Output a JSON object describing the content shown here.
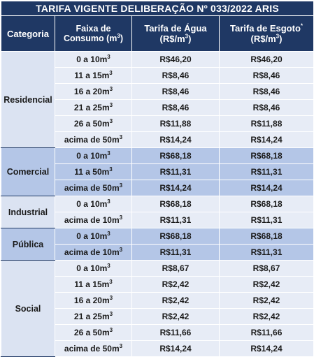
{
  "title": "TARIFA VIGENTE DELIBERAÇÃO Nº 033/2022 ARIS",
  "headers": {
    "categoria": "Categoria",
    "faixa": "Faixa de Consumo (m³)",
    "agua": "Tarifa de Água (R$/m³)",
    "esgoto": "Tarifa de Esgoto* (R$/m³)"
  },
  "groups": [
    {
      "categoria": "Residencial",
      "rows": [
        {
          "faixa": "0 a 10m³",
          "agua": "R$46,20",
          "esgoto": "R$46,20"
        },
        {
          "faixa": "11 a 15m³",
          "agua": "R$8,46",
          "esgoto": "R$8,46"
        },
        {
          "faixa": "16 a 20m³",
          "agua": "R$8,46",
          "esgoto": "R$8,46"
        },
        {
          "faixa": "21 a 25m³",
          "agua": "R$8,46",
          "esgoto": "R$8,46"
        },
        {
          "faixa": "26 a 50m³",
          "agua": "R$11,88",
          "esgoto": "R$11,88"
        },
        {
          "faixa": "acima de 50m³",
          "agua": "R$14,24",
          "esgoto": "R$14,24"
        }
      ]
    },
    {
      "categoria": "Comercial",
      "rows": [
        {
          "faixa": "0 a 10m³",
          "agua": "R$68,18",
          "esgoto": "R$68,18"
        },
        {
          "faixa": "11 a 50m³",
          "agua": "R$11,31",
          "esgoto": "R$11,31"
        },
        {
          "faixa": "acima de 50m³",
          "agua": "R$14,24",
          "esgoto": "R$14,24"
        }
      ]
    },
    {
      "categoria": "Industrial",
      "rows": [
        {
          "faixa": "0 a 10m³",
          "agua": "R$68,18",
          "esgoto": "R$68,18"
        },
        {
          "faixa": "acima de 10m³",
          "agua": "R$11,31",
          "esgoto": "R$11,31"
        }
      ]
    },
    {
      "categoria": "Pública",
      "rows": [
        {
          "faixa": "0 a 10m³",
          "agua": "R$68,18",
          "esgoto": "R$68,18"
        },
        {
          "faixa": "acima de 10m³",
          "agua": "R$11,31",
          "esgoto": "R$11,31"
        }
      ]
    },
    {
      "categoria": "Social",
      "rows": [
        {
          "faixa": "0 a 10m³",
          "agua": "R$8,67",
          "esgoto": "R$8,67"
        },
        {
          "faixa": "11 a 15m³",
          "agua": "R$2,42",
          "esgoto": "R$2,42"
        },
        {
          "faixa": "16 a 20m³",
          "agua": "R$2,42",
          "esgoto": "R$2,42"
        },
        {
          "faixa": "21 a 25m³",
          "agua": "R$2,42",
          "esgoto": "R$2,42"
        },
        {
          "faixa": "26 a 50m³",
          "agua": "R$11,66",
          "esgoto": "R$11,66"
        },
        {
          "faixa": "acima de 50m³",
          "agua": "R$14,24",
          "esgoto": "R$14,24"
        }
      ]
    }
  ],
  "colors": {
    "header_bg": "#1f3864",
    "row_light": "#e7ecf6",
    "row_dark": "#b4c6e7"
  }
}
